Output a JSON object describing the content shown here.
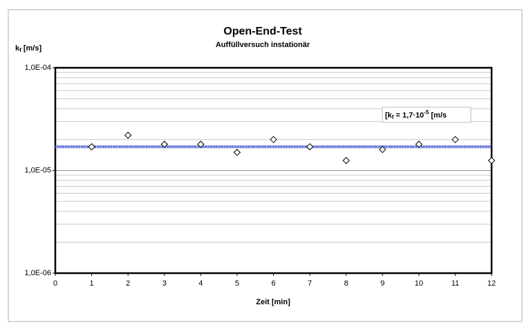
{
  "chart_data": {
    "type": "scatter",
    "title": "Open-End-Test",
    "subtitle": "Auffüllversuch instationär",
    "y_label": [
      "k",
      "f",
      " [m/s]"
    ],
    "x_label": "Zeit [min]",
    "x": [
      1,
      2,
      3,
      4,
      5,
      6,
      7,
      8,
      9,
      10,
      11,
      12
    ],
    "series": [
      {
        "color": "#000000",
        "values": [
          1.7e-05,
          2.2e-05,
          1.8e-05,
          1.8e-05,
          1.5e-05,
          2e-05,
          1.7e-05,
          1.25e-05,
          1.6e-05,
          1.8e-05,
          2e-05,
          1.25e-05
        ]
      }
    ],
    "xlim": [
      0,
      12
    ],
    "xticks": [
      0,
      1,
      2,
      3,
      4,
      5,
      6,
      7,
      8,
      9,
      10,
      11,
      12
    ],
    "ylim": [
      1e-06,
      0.0001
    ],
    "log_y": true,
    "yticks": [
      {
        "value": 1e-06,
        "label": "1,0E-06"
      },
      {
        "value": 1e-05,
        "label": "1,0E-05"
      },
      {
        "value": 0.0001,
        "label": "1,0E-04"
      }
    ],
    "minor_yticks": [
      2e-06,
      3e-06,
      4e-06,
      5e-06,
      6e-06,
      7e-06,
      8e-06,
      9e-06,
      2e-05,
      3e-05,
      4e-05,
      5e-05,
      6e-05,
      7e-05,
      8e-05,
      9e-05
    ],
    "grid": true,
    "reference_line": {
      "value": 1.7e-05,
      "color": "#3a4fc8",
      "label": [
        "[k",
        "f",
        " = 1,7·10",
        "-5",
        " [m/s"
      ]
    }
  }
}
